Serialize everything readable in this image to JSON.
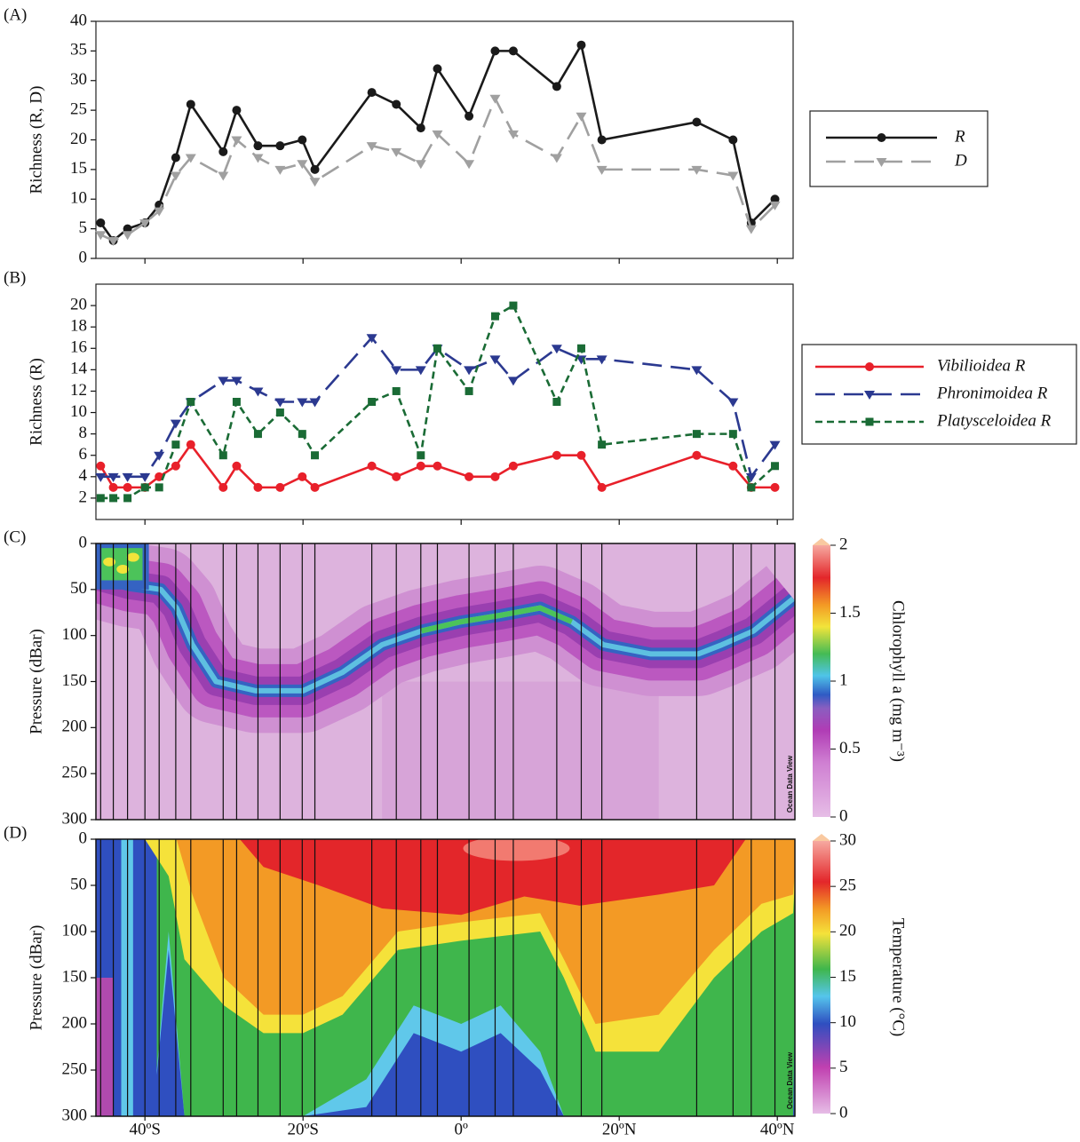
{
  "chart_data": [
    {
      "type": "line",
      "label": "(A)",
      "ylabel": "Richness (R, D)",
      "x": [
        -45.6,
        -44,
        -42.2,
        -40,
        -38.2,
        -36.1,
        -34.2,
        -30.1,
        -28.4,
        -25.7,
        -22.9,
        -20.1,
        -18.5,
        -11.3,
        -8.2,
        -5.1,
        -3,
        1,
        4.3,
        6.6,
        12.1,
        15.2,
        17.8,
        29.8,
        34.4,
        36.7,
        39.7
      ],
      "xlim": [
        -46.2,
        42
      ],
      "ylim": [
        0,
        40
      ],
      "yticks": [
        0,
        5,
        10,
        15,
        20,
        25,
        30,
        35,
        40
      ],
      "legend": "right",
      "series": [
        {
          "name": "R",
          "color": "#1a1a1a",
          "marker": "circle",
          "dash": "solid",
          "values": [
            6,
            3,
            5,
            6,
            9,
            17,
            26,
            18,
            25,
            19,
            19,
            20,
            15,
            28,
            26,
            22,
            32,
            24,
            35,
            35,
            29,
            36,
            20,
            23,
            20,
            6,
            10
          ]
        },
        {
          "name": "D",
          "color": "#a0a0a0",
          "marker": "triangle-down",
          "dash": "long",
          "values": [
            4,
            3,
            4,
            6,
            8,
            14,
            17,
            14,
            20,
            17,
            15,
            16,
            13,
            19,
            18,
            16,
            21,
            16,
            27,
            21,
            17,
            24,
            15,
            15,
            14,
            5,
            9
          ]
        }
      ]
    },
    {
      "type": "line",
      "label": "(B)",
      "ylabel": "Richness (R)",
      "x": [
        -45.6,
        -44,
        -42.2,
        -40,
        -38.2,
        -36.1,
        -34.2,
        -30.1,
        -28.4,
        -25.7,
        -22.9,
        -20.1,
        -18.5,
        -11.3,
        -8.2,
        -5.1,
        -3,
        1,
        4.3,
        6.6,
        12.1,
        15.2,
        17.8,
        29.8,
        34.4,
        36.7,
        39.7
      ],
      "xlim": [
        -46.2,
        42
      ],
      "ylim": [
        0,
        22
      ],
      "yticks": [
        2,
        4,
        6,
        8,
        10,
        12,
        14,
        16,
        18,
        20
      ],
      "legend": "right",
      "series": [
        {
          "name": "Vibilioidea R",
          "color": "#e8202a",
          "marker": "circle",
          "dash": "solid",
          "values": [
            5,
            3,
            3,
            3,
            4,
            5,
            7,
            3,
            5,
            3,
            3,
            4,
            3,
            5,
            4,
            5,
            5,
            4,
            4,
            5,
            6,
            6,
            3,
            6,
            5,
            3,
            3
          ]
        },
        {
          "name": "Phronimoidea R",
          "color": "#2b3990",
          "marker": "triangle-down",
          "dash": "long",
          "values": [
            4,
            4,
            4,
            4,
            6,
            9,
            11,
            13,
            13,
            12,
            11,
            11,
            11,
            17,
            14,
            14,
            16,
            14,
            15,
            13,
            16,
            15,
            15,
            14,
            11,
            4,
            7
          ]
        },
        {
          "name": "Platysceloidea R",
          "color": "#1a6b35",
          "marker": "square",
          "dash": "short",
          "values": [
            2,
            2,
            2,
            3,
            3,
            7,
            11,
            6,
            11,
            8,
            10,
            8,
            6,
            11,
            12,
            6,
            16,
            12,
            19,
            20,
            11,
            16,
            7,
            8,
            8,
            3,
            5
          ]
        }
      ]
    },
    {
      "type": "contour",
      "label": "(C)",
      "ylabel": "Pressure (dBar)",
      "variable": "chlorophyll",
      "stations": [
        -45.6,
        -44,
        -42.2,
        -40,
        -38.2,
        -36.1,
        -34.2,
        -30.1,
        -28.4,
        -25.7,
        -22.9,
        -20.1,
        -18.5,
        -11.3,
        -8.2,
        -5.1,
        -3,
        1,
        4.3,
        6.6,
        12.1,
        15.2,
        17.8,
        29.8,
        34.4,
        36.7,
        39.7
      ],
      "xlim": [
        -46.2,
        42
      ],
      "ylim": [
        0,
        300
      ],
      "y_reversed": true,
      "yticks": [
        0,
        50,
        100,
        150,
        200,
        250,
        300
      ],
      "colorbar": {
        "label": "Chlorophyll a (mg m⁻³)",
        "lim": [
          0,
          2
        ],
        "ticks": [
          0,
          0.5,
          1,
          1.5,
          2
        ]
      },
      "watermark": "Ocean Data View"
    },
    {
      "type": "contour",
      "label": "(D)",
      "ylabel": "Pressure (dBar)",
      "variable": "temperature",
      "stations": [
        -45.6,
        -44,
        -42.2,
        -40,
        -38.2,
        -36.1,
        -34.2,
        -30.1,
        -28.4,
        -25.7,
        -22.9,
        -20.1,
        -18.5,
        -11.3,
        -8.2,
        -5.1,
        -3,
        1,
        4.3,
        6.6,
        12.1,
        15.2,
        17.8,
        29.8,
        34.4,
        36.7,
        39.7
      ],
      "xlim": [
        -46.2,
        42
      ],
      "ylim": [
        0,
        300
      ],
      "y_reversed": true,
      "yticks": [
        0,
        50,
        100,
        150,
        200,
        250,
        300
      ],
      "xticks": [
        {
          "value": -40,
          "label": "40ºS"
        },
        {
          "value": -20,
          "label": "20ºS"
        },
        {
          "value": 0,
          "label": "0º"
        },
        {
          "value": 20,
          "label": "20ºN"
        },
        {
          "value": 40,
          "label": "40ºN"
        }
      ],
      "colorbar": {
        "label": "Temperature (°C)",
        "lim": [
          0,
          30
        ],
        "ticks": [
          0,
          5,
          10,
          15,
          20,
          25,
          30
        ]
      },
      "watermark": "Ocean Data View"
    }
  ]
}
